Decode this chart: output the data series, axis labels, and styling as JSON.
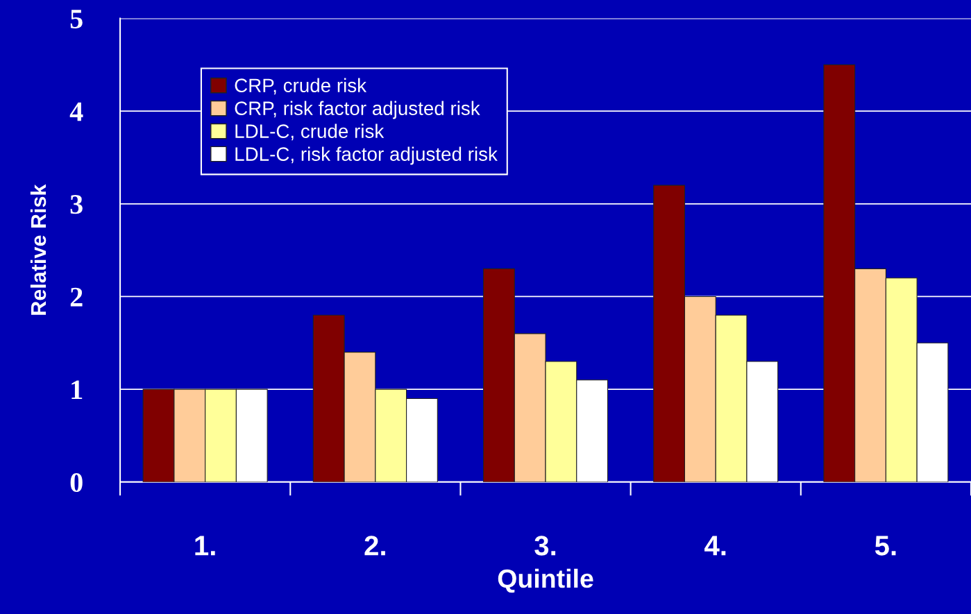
{
  "chart_data": {
    "type": "bar",
    "xlabel": "Quintile",
    "ylabel": "Relative Risk",
    "categories": [
      "1.",
      "2.",
      "3.",
      "4.",
      "5."
    ],
    "series": [
      {
        "name": "CRP, crude risk",
        "color": "#800000",
        "values": [
          1.0,
          1.8,
          2.3,
          3.2,
          4.5
        ]
      },
      {
        "name": "CRP, risk factor adjusted risk",
        "color": "#ffcc99",
        "values": [
          1.0,
          1.4,
          1.6,
          2.0,
          2.3
        ]
      },
      {
        "name": "LDL-C, crude risk",
        "color": "#ffff99",
        "values": [
          1.0,
          1.0,
          1.3,
          1.8,
          2.2
        ]
      },
      {
        "name": "LDL-C, risk factor adjusted risk",
        "color": "#ffffff",
        "values": [
          1.0,
          0.9,
          1.1,
          1.3,
          1.5
        ]
      }
    ],
    "ylim": [
      0,
      5
    ],
    "yticks": [
      0,
      1,
      2,
      3,
      4,
      5
    ],
    "grid": "y",
    "legend": "top left"
  }
}
